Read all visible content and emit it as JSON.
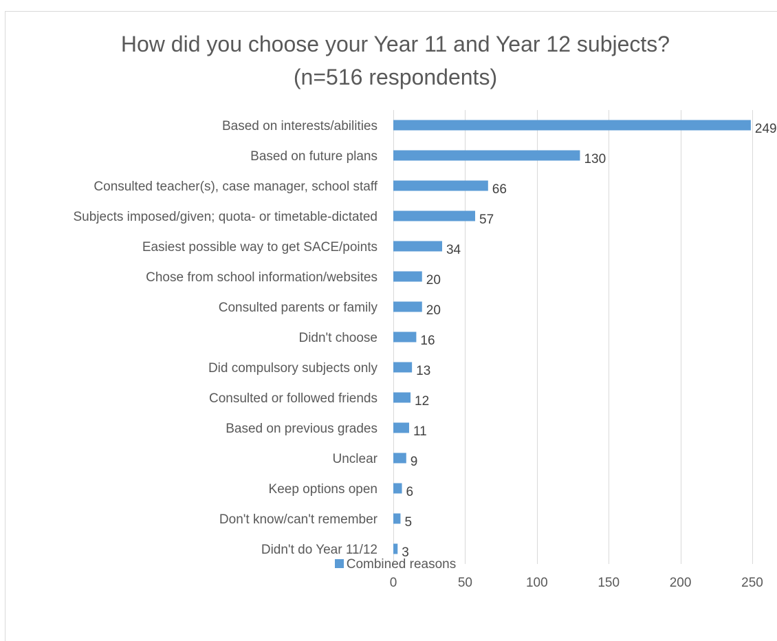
{
  "chart_data": {
    "type": "bar",
    "orientation": "horizontal",
    "title_line1": "How did you choose your Year 11 and Year 12 subjects?",
    "title_line2": "(n=516 respondents)",
    "categories": [
      "Based on interests/abilities",
      "Based on future plans",
      "Consulted teacher(s), case manager, school staff",
      "Subjects imposed/given; quota- or timetable-dictated",
      "Easiest possible way to get SACE/points",
      "Chose from school information/websites",
      "Consulted parents or family",
      "Didn't choose",
      "Did compulsory subjects only",
      "Consulted or followed friends",
      "Based on previous grades",
      "Unclear",
      "Keep options open",
      "Don't know/can't remember",
      "Didn't do Year 11/12"
    ],
    "series": [
      {
        "name": "Combined reasons",
        "values": [
          249,
          130,
          66,
          57,
          34,
          20,
          20,
          16,
          13,
          12,
          11,
          9,
          6,
          5,
          3
        ],
        "color": "#5b9bd5"
      }
    ],
    "xlim": [
      0,
      250
    ],
    "xticks": [
      0,
      50,
      100,
      150,
      200,
      250
    ],
    "grid": true,
    "legend_position": "bottom"
  }
}
